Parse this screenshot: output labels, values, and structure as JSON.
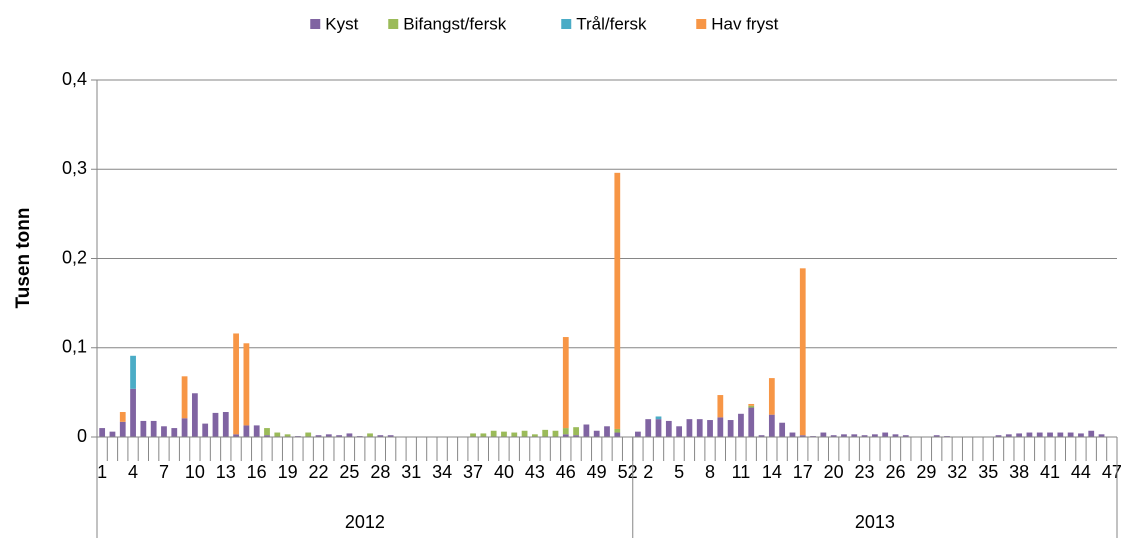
{
  "chart_data": {
    "type": "stacked_bar",
    "y_label": "Tusen tonn",
    "ylim": [
      0,
      0.4
    ],
    "yticks": [
      0,
      {
        "value": 0.1,
        "label": "0,1"
      },
      {
        "value": 0.2,
        "label": "0,2"
      },
      {
        "value": 0.3,
        "label": "0,3"
      },
      {
        "value": 0.4,
        "label": "0,4"
      }
    ],
    "grid": true,
    "legend": "top",
    "categories": [
      "1",
      null,
      null,
      "4",
      null,
      null,
      "7",
      null,
      null,
      "10",
      null,
      null,
      "13",
      null,
      null,
      "16",
      null,
      null,
      "19",
      null,
      null,
      "22",
      null,
      null,
      "25",
      null,
      null,
      "28",
      null,
      null,
      "31",
      null,
      null,
      "34",
      null,
      null,
      "37",
      null,
      null,
      "40",
      null,
      null,
      "43",
      null,
      null,
      "46",
      null,
      null,
      "49",
      null,
      null,
      "52",
      null,
      "2",
      null,
      null,
      "5",
      null,
      null,
      "8",
      null,
      null,
      "11",
      null,
      null,
      "14",
      null,
      null,
      "17",
      null,
      null,
      "20",
      null,
      null,
      "23",
      null,
      null,
      "26",
      null,
      null,
      "29",
      null,
      null,
      "32",
      null,
      null,
      "35",
      null,
      null,
      "38",
      null,
      null,
      "41",
      null,
      null,
      "44",
      null,
      null,
      "47"
    ],
    "groups": [
      {
        "label": "2012",
        "size": 52
      },
      {
        "label": "2013",
        "size": 47
      }
    ],
    "series": [
      {
        "name": "Kyst",
        "color": "#8064a2",
        "values": [
          0.01,
          0.006,
          0.017,
          0.054,
          0.018,
          0.018,
          0.012,
          0.01,
          0.021,
          0.049,
          0.015,
          0.027,
          0.028,
          0.003,
          0.013,
          0.013,
          0.002,
          0,
          0,
          0.001,
          0,
          0.002,
          0.003,
          0.002,
          0.004,
          0.001,
          0,
          0.002,
          0.002,
          0,
          0,
          0,
          0,
          0,
          0,
          0,
          0,
          0,
          0,
          0,
          0,
          0,
          0,
          0,
          0,
          0.003,
          0.002,
          0.014,
          0.007,
          0.012,
          0.005,
          0,
          0.006,
          0.02,
          0.02,
          0.018,
          0.012,
          0.02,
          0.02,
          0.019,
          0.022,
          0.019,
          0.026,
          0.033,
          0.002,
          0.025,
          0.016,
          0.005,
          0.002,
          0.001,
          0.005,
          0.002,
          0.003,
          0.003,
          0.002,
          0.003,
          0.005,
          0.003,
          0.002,
          0,
          0,
          0.002,
          0.001,
          0,
          0,
          0,
          0,
          0.002,
          0.003,
          0.004,
          0.005,
          0.005,
          0.005,
          0.005,
          0.005,
          0.004,
          0.007,
          0.003,
          0
        ]
      },
      {
        "name": "Bifangst/fersk",
        "color": "#9bbb59",
        "values": [
          0,
          0,
          0,
          0,
          0,
          0,
          0,
          0,
          0,
          0,
          0,
          0,
          0,
          0,
          0,
          0,
          0.008,
          0.005,
          0.003,
          0,
          0.005,
          0,
          0,
          0,
          0,
          0,
          0.004,
          0,
          0,
          0,
          0,
          0,
          0,
          0,
          0,
          0,
          0.004,
          0.004,
          0.007,
          0.006,
          0.005,
          0.007,
          0.003,
          0.008,
          0.007,
          0.007,
          0.009,
          0,
          0,
          0,
          0.004,
          0,
          0,
          0,
          0,
          0,
          0,
          0,
          0,
          0,
          0,
          0,
          0,
          0.002,
          0,
          0,
          0,
          0,
          0,
          0,
          0,
          0,
          0,
          0,
          0,
          0,
          0,
          0,
          0,
          0,
          0,
          0,
          0,
          0,
          0,
          0,
          0,
          0,
          0,
          0,
          0,
          0,
          0,
          0,
          0,
          0,
          0,
          0,
          0
        ]
      },
      {
        "name": "Trål/fersk",
        "color": "#4bacc6",
        "values": [
          0,
          0,
          0,
          0.037,
          0,
          0,
          0,
          0,
          0,
          0,
          0,
          0,
          0,
          0,
          0,
          0,
          0,
          0,
          0,
          0,
          0,
          0,
          0,
          0,
          0,
          0,
          0,
          0,
          0,
          0,
          0,
          0,
          0,
          0,
          0,
          0,
          0,
          0,
          0,
          0,
          0,
          0,
          0,
          0,
          0,
          0,
          0,
          0,
          0,
          0,
          0,
          0,
          0,
          0,
          0.003,
          0,
          0,
          0,
          0,
          0,
          0,
          0,
          0,
          0,
          0,
          0,
          0,
          0,
          0,
          0,
          0,
          0,
          0,
          0,
          0,
          0,
          0,
          0,
          0,
          0,
          0,
          0,
          0,
          0,
          0,
          0,
          0,
          0,
          0,
          0,
          0,
          0,
          0,
          0,
          0,
          0,
          0,
          0,
          0
        ]
      },
      {
        "name": "Hav fryst",
        "color": "#f79646",
        "values": [
          0,
          0,
          0.011,
          0,
          0,
          0,
          0,
          0,
          0.047,
          0,
          0,
          0,
          0,
          0.113,
          0.092,
          0,
          0,
          0,
          0,
          0,
          0,
          0,
          0,
          0,
          0,
          0,
          0,
          0,
          0,
          0,
          0,
          0,
          0,
          0,
          0,
          0,
          0,
          0,
          0,
          0,
          0,
          0,
          0,
          0,
          0,
          0.102,
          0,
          0,
          0,
          0,
          0.287,
          0,
          0,
          0,
          0,
          0,
          0,
          0,
          0,
          0,
          0.025,
          0,
          0,
          0.002,
          0,
          0.041,
          0,
          0,
          0.187,
          0,
          0,
          0,
          0,
          0,
          0,
          0,
          0,
          0,
          0,
          0,
          0,
          0,
          0,
          0,
          0,
          0,
          0,
          0,
          0,
          0,
          0,
          0,
          0,
          0,
          0,
          0,
          0,
          0,
          0
        ]
      }
    ]
  }
}
